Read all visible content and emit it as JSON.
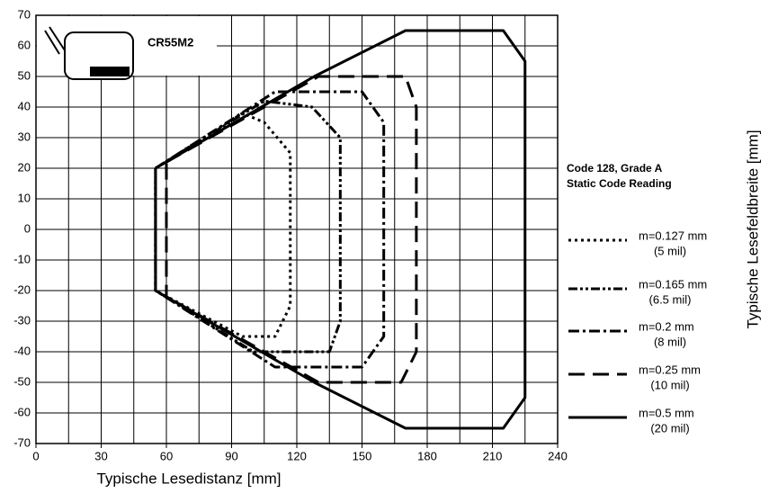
{
  "chart_data": {
    "type": "line",
    "x_label": "Typische Lesedistanz [mm]",
    "y_label": "Typische Lesefeldbreite [mm]",
    "annotation": "CR55M2",
    "legend_title": [
      "Code 128, Grade A",
      "Static Code Reading"
    ],
    "xlim": [
      0,
      240
    ],
    "xticks": [
      0,
      30,
      60,
      90,
      120,
      150,
      180,
      210,
      240
    ],
    "xgrid": [
      0,
      15,
      30,
      45,
      60,
      75,
      90,
      105,
      120,
      135,
      150,
      165,
      180,
      195,
      210,
      225,
      240
    ],
    "ylim": [
      -70,
      70
    ],
    "yticks": [
      -70,
      -60,
      -50,
      -40,
      -30,
      -20,
      -10,
      0,
      10,
      20,
      30,
      40,
      50,
      60,
      70
    ],
    "grid": true,
    "series": [
      {
        "name": "m=0.127 mm",
        "sublabel": "(5 mil)",
        "color": "#000000",
        "dash": "3,4",
        "x": [
          55,
          95,
          105,
          117,
          117,
          110,
          95,
          55,
          55
        ],
        "values": [
          20,
          38,
          35,
          25,
          -25,
          -35,
          -35,
          -20,
          20
        ]
      },
      {
        "name": "m=0.165 mm",
        "sublabel": "(6.5 mil)",
        "color": "#000000",
        "dash": "10,3,3,3,3,3",
        "x": [
          55,
          105,
          127,
          140,
          140,
          135,
          100,
          55,
          55
        ],
        "values": [
          20,
          42,
          40,
          30,
          -30,
          -40,
          -40,
          -20,
          20
        ]
      },
      {
        "name": "m=0.2 mm",
        "sublabel": "(8 mil)",
        "color": "#000000",
        "dash": "12,4,3,4",
        "x": [
          55,
          110,
          150,
          160,
          160,
          150,
          110,
          55,
          55
        ],
        "values": [
          20,
          45,
          45,
          35,
          -35,
          -45,
          -45,
          -20,
          20
        ]
      },
      {
        "name": "m=0.25 mm",
        "sublabel": "(10 mil)",
        "color": "#000000",
        "dash": "18,9",
        "x": [
          60,
          130,
          170,
          175,
          175,
          168,
          130,
          60,
          60
        ],
        "values": [
          22,
          50,
          50,
          40,
          -40,
          -50,
          -50,
          -22,
          22
        ]
      },
      {
        "name": "m=0.5 mm",
        "sublabel": "(20 mil)",
        "color": "#000000",
        "dash": "none",
        "x": [
          55,
          128,
          170,
          215,
          225,
          225,
          215,
          170,
          128,
          55,
          55
        ],
        "values": [
          20,
          50,
          65,
          65,
          55,
          -55,
          -65,
          -65,
          -50,
          -20,
          20
        ]
      }
    ]
  }
}
